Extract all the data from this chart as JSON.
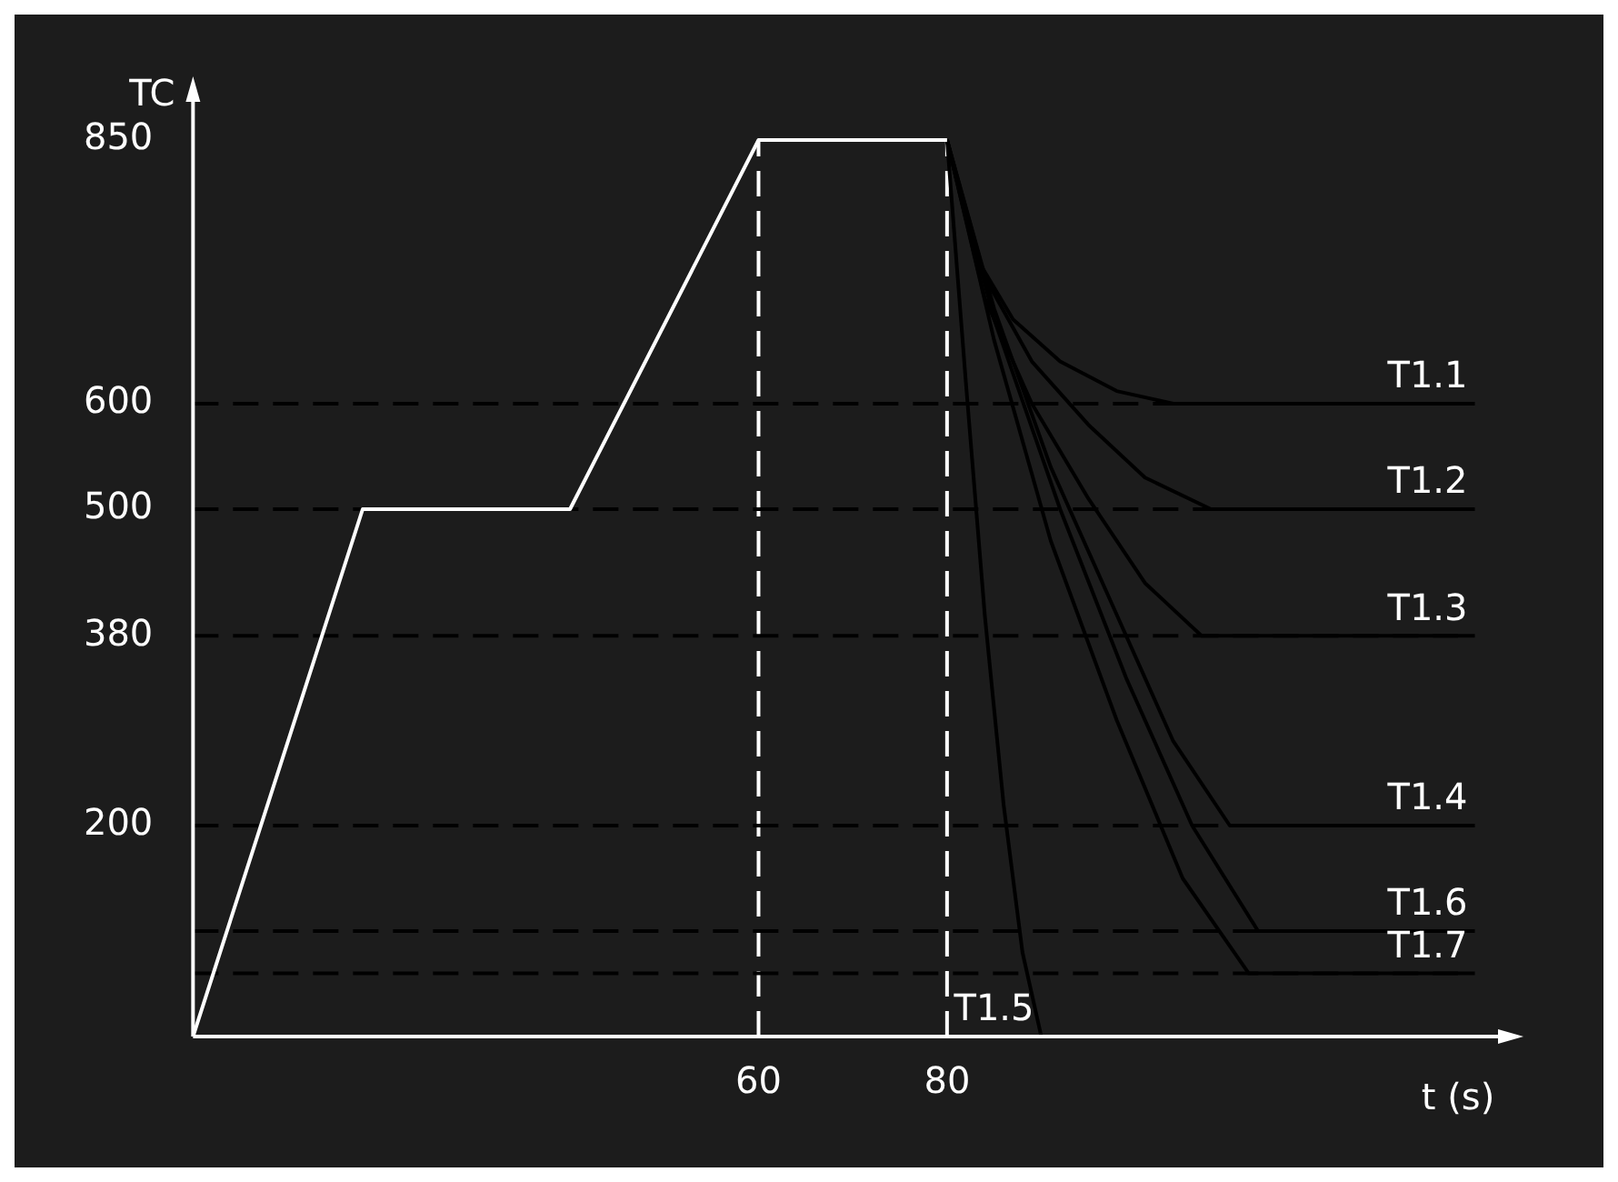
{
  "chart_data": {
    "type": "line",
    "xlabel": "t (s)",
    "ylabel": "TC",
    "xlim": [
      0,
      140
    ],
    "xticks": [
      60,
      80
    ],
    "ylim": [
      0,
      900
    ],
    "yticks": [
      200,
      380,
      500,
      600,
      850
    ],
    "grid": false,
    "legend": false,
    "marker": "none",
    "series": [
      {
        "color": "#ffffff",
        "x": [
          0,
          18,
          40,
          60,
          80
        ],
        "values": [
          0,
          500,
          500,
          850,
          850
        ]
      },
      {
        "name": "T1.1",
        "color": "#000000",
        "x": [
          80,
          83,
          87,
          92,
          98,
          104,
          136
        ],
        "values": [
          850,
          740,
          680,
          640,
          612,
          600,
          600
        ]
      },
      {
        "name": "T1.2",
        "color": "#000000",
        "x": [
          80,
          84,
          89,
          95,
          101,
          108,
          136
        ],
        "values": [
          850,
          720,
          640,
          580,
          530,
          500,
          500
        ]
      },
      {
        "name": "T1.3",
        "color": "#000000",
        "x": [
          80,
          84,
          89,
          95,
          101,
          107,
          136
        ],
        "values": [
          850,
          700,
          600,
          510,
          430,
          380,
          380
        ]
      },
      {
        "name": "T1.4",
        "color": "#000000",
        "x": [
          80,
          85,
          91,
          98,
          104,
          110,
          136
        ],
        "values": [
          850,
          690,
          540,
          400,
          280,
          200,
          200
        ]
      },
      {
        "name": "T1.5",
        "color": "#000000",
        "x": [
          80,
          82,
          84,
          86,
          88,
          90
        ],
        "values": [
          850,
          620,
          400,
          220,
          80,
          0
        ]
      },
      {
        "name": "T1.6",
        "color": "#000000",
        "x": [
          80,
          85,
          92,
          99,
          106,
          113,
          136
        ],
        "values": [
          850,
          680,
          500,
          340,
          200,
          100,
          100
        ]
      },
      {
        "name": "T1.7",
        "color": "#000000",
        "x": [
          80,
          85,
          91,
          98,
          105,
          112,
          136
        ],
        "values": [
          850,
          660,
          470,
          300,
          150,
          60,
          60
        ]
      }
    ],
    "ref_lines": [
      {
        "axis": "x",
        "value": 60,
        "color": "#ffffff",
        "line_style": "dashed"
      },
      {
        "axis": "x",
        "value": 80,
        "color": "#ffffff",
        "line_style": "dashed"
      },
      {
        "axis": "y",
        "value": 600,
        "color": "#000000",
        "line_style": "dashed"
      },
      {
        "axis": "y",
        "value": 500,
        "color": "#000000",
        "line_style": "dashed"
      },
      {
        "axis": "y",
        "value": 380,
        "color": "#000000",
        "line_style": "dashed"
      },
      {
        "axis": "y",
        "value": 200,
        "color": "#000000",
        "line_style": "dashed"
      },
      {
        "axis": "y",
        "value": 100,
        "color": "#000000",
        "line_style": "dashed"
      },
      {
        "axis": "y",
        "value": 60,
        "color": "#000000",
        "line_style": "dashed"
      }
    ]
  }
}
